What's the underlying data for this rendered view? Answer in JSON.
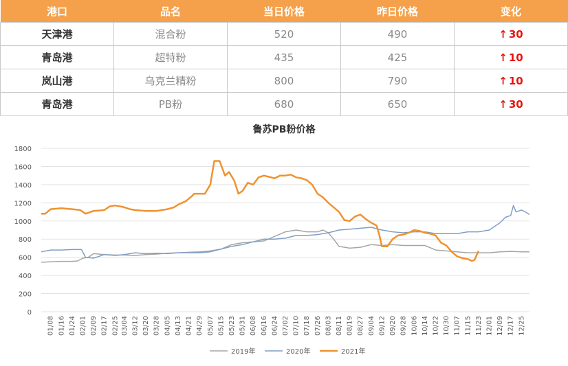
{
  "table": {
    "headers": [
      "港口",
      "品名",
      "当日价格",
      "昨日价格",
      "变化"
    ],
    "rows": [
      {
        "port": "天津港",
        "product": "混合粉",
        "today": "520",
        "yesterday": "490",
        "change_arrow": "↑",
        "change": "30"
      },
      {
        "port": "青岛港",
        "product": "超特粉",
        "today": "435",
        "yesterday": "425",
        "change_arrow": "↑",
        "change": "10"
      },
      {
        "port": "岚山港",
        "product": "乌克兰精粉",
        "today": "800",
        "yesterday": "790",
        "change_arrow": "↑",
        "change": "10"
      },
      {
        "port": "青岛港",
        "product": "PB粉",
        "today": "680",
        "yesterday": "650",
        "change_arrow": "↑",
        "change": "30"
      }
    ],
    "colors": {
      "header_bg": "#f5a04a",
      "increase": "#e8120c"
    }
  },
  "chart_data": {
    "type": "line",
    "title": "鲁苏PB粉价格",
    "ylim": [
      0,
      1800
    ],
    "yticks": [
      0,
      200,
      400,
      600,
      800,
      1000,
      1200,
      1400,
      1600,
      1800
    ],
    "xlim": [
      "01/01",
      "12/31"
    ],
    "xticks": [
      "01/08",
      "01/16",
      "01/24",
      "02/01",
      "02/09",
      "02/17",
      "02/25",
      "03/04",
      "03/12",
      "03/20",
      "03/28",
      "04/05",
      "04/13",
      "04/21",
      "04/29",
      "05/07",
      "05/15",
      "05/23",
      "05/31",
      "06/08",
      "06/16",
      "06/24",
      "07/02",
      "07/10",
      "07/18",
      "07/26",
      "08/03",
      "08/11",
      "08/19",
      "08/27",
      "09/04",
      "09/12",
      "09/20",
      "09/28",
      "10/06",
      "10/14",
      "10/22",
      "10/30",
      "11/07",
      "11/15",
      "11/23",
      "12/01",
      "12/09",
      "12/17",
      "12/25"
    ],
    "legend_position": "bottom",
    "series": [
      {
        "name": "2019年",
        "color": "#a5a5a5",
        "width": 1.5,
        "points": [
          [
            "01/01",
            545
          ],
          [
            "01/08",
            550
          ],
          [
            "01/16",
            555
          ],
          [
            "01/24",
            555
          ],
          [
            "01/28",
            560
          ],
          [
            "02/01",
            590
          ],
          [
            "02/05",
            600
          ],
          [
            "02/09",
            640
          ],
          [
            "02/17",
            630
          ],
          [
            "02/25",
            625
          ],
          [
            "03/04",
            625
          ],
          [
            "03/12",
            620
          ],
          [
            "03/20",
            630
          ],
          [
            "03/28",
            635
          ],
          [
            "04/05",
            645
          ],
          [
            "04/13",
            650
          ],
          [
            "04/21",
            655
          ],
          [
            "04/29",
            660
          ],
          [
            "05/07",
            670
          ],
          [
            "05/15",
            690
          ],
          [
            "05/23",
            740
          ],
          [
            "05/31",
            760
          ],
          [
            "06/08",
            770
          ],
          [
            "06/16",
            780
          ],
          [
            "06/24",
            830
          ],
          [
            "07/02",
            880
          ],
          [
            "07/10",
            900
          ],
          [
            "07/18",
            880
          ],
          [
            "07/26",
            880
          ],
          [
            "07/30",
            900
          ],
          [
            "08/03",
            870
          ],
          [
            "08/07",
            800
          ],
          [
            "08/11",
            720
          ],
          [
            "08/19",
            700
          ],
          [
            "08/27",
            710
          ],
          [
            "09/04",
            740
          ],
          [
            "09/12",
            730
          ],
          [
            "09/20",
            740
          ],
          [
            "09/28",
            730
          ],
          [
            "10/06",
            730
          ],
          [
            "10/14",
            730
          ],
          [
            "10/22",
            680
          ],
          [
            "10/30",
            670
          ],
          [
            "11/07",
            660
          ],
          [
            "11/15",
            650
          ],
          [
            "11/23",
            650
          ],
          [
            "12/01",
            650
          ],
          [
            "12/09",
            660
          ],
          [
            "12/17",
            665
          ],
          [
            "12/25",
            660
          ],
          [
            "12/31",
            660
          ]
        ]
      },
      {
        "name": "2020年",
        "color": "#7f9ec6",
        "width": 1.5,
        "points": [
          [
            "01/01",
            660
          ],
          [
            "01/08",
            680
          ],
          [
            "01/16",
            680
          ],
          [
            "01/24",
            685
          ],
          [
            "01/31",
            685
          ],
          [
            "02/03",
            600
          ],
          [
            "02/09",
            590
          ],
          [
            "02/17",
            630
          ],
          [
            "02/25",
            620
          ],
          [
            "03/04",
            630
          ],
          [
            "03/12",
            650
          ],
          [
            "03/20",
            640
          ],
          [
            "03/28",
            645
          ],
          [
            "04/05",
            640
          ],
          [
            "04/13",
            650
          ],
          [
            "04/21",
            650
          ],
          [
            "04/29",
            650
          ],
          [
            "05/07",
            660
          ],
          [
            "05/15",
            690
          ],
          [
            "05/23",
            720
          ],
          [
            "05/31",
            740
          ],
          [
            "06/08",
            770
          ],
          [
            "06/16",
            800
          ],
          [
            "06/24",
            800
          ],
          [
            "07/02",
            810
          ],
          [
            "07/10",
            840
          ],
          [
            "07/18",
            840
          ],
          [
            "07/26",
            850
          ],
          [
            "08/03",
            870
          ],
          [
            "08/11",
            900
          ],
          [
            "08/19",
            910
          ],
          [
            "08/27",
            920
          ],
          [
            "09/04",
            930
          ],
          [
            "09/12",
            900
          ],
          [
            "09/20",
            880
          ],
          [
            "09/28",
            870
          ],
          [
            "10/06",
            880
          ],
          [
            "10/14",
            880
          ],
          [
            "10/22",
            860
          ],
          [
            "10/30",
            860
          ],
          [
            "11/07",
            860
          ],
          [
            "11/15",
            880
          ],
          [
            "11/23",
            880
          ],
          [
            "12/01",
            900
          ],
          [
            "12/09",
            980
          ],
          [
            "12/13",
            1040
          ],
          [
            "12/17",
            1060
          ],
          [
            "12/19",
            1170
          ],
          [
            "12/21",
            1100
          ],
          [
            "12/25",
            1120
          ],
          [
            "12/28",
            1100
          ],
          [
            "12/31",
            1070
          ]
        ]
      },
      {
        "name": "2021年",
        "color": "#f0922e",
        "width": 2.5,
        "points": [
          [
            "01/01",
            1080
          ],
          [
            "01/04",
            1080
          ],
          [
            "01/08",
            1130
          ],
          [
            "01/16",
            1140
          ],
          [
            "01/24",
            1130
          ],
          [
            "01/30",
            1120
          ],
          [
            "02/03",
            1080
          ],
          [
            "02/09",
            1110
          ],
          [
            "02/17",
            1120
          ],
          [
            "02/21",
            1160
          ],
          [
            "02/25",
            1170
          ],
          [
            "03/01",
            1160
          ],
          [
            "03/04",
            1150
          ],
          [
            "03/08",
            1130
          ],
          [
            "03/12",
            1120
          ],
          [
            "03/20",
            1110
          ],
          [
            "03/28",
            1110
          ],
          [
            "04/05",
            1130
          ],
          [
            "04/10",
            1150
          ],
          [
            "04/13",
            1180
          ],
          [
            "04/19",
            1220
          ],
          [
            "04/23",
            1270
          ],
          [
            "04/25",
            1300
          ],
          [
            "04/29",
            1300
          ],
          [
            "05/03",
            1300
          ],
          [
            "05/07",
            1400
          ],
          [
            "05/10",
            1660
          ],
          [
            "05/14",
            1660
          ],
          [
            "05/18",
            1500
          ],
          [
            "05/21",
            1540
          ],
          [
            "05/25",
            1440
          ],
          [
            "05/28",
            1300
          ],
          [
            "05/31",
            1330
          ],
          [
            "06/04",
            1420
          ],
          [
            "06/08",
            1400
          ],
          [
            "06/12",
            1480
          ],
          [
            "06/16",
            1500
          ],
          [
            "06/24",
            1470
          ],
          [
            "06/28",
            1500
          ],
          [
            "07/02",
            1500
          ],
          [
            "07/06",
            1510
          ],
          [
            "07/10",
            1480
          ],
          [
            "07/14",
            1470
          ],
          [
            "07/18",
            1450
          ],
          [
            "07/22",
            1400
          ],
          [
            "07/26",
            1300
          ],
          [
            "07/30",
            1260
          ],
          [
            "08/03",
            1200
          ],
          [
            "08/07",
            1150
          ],
          [
            "08/11",
            1100
          ],
          [
            "08/15",
            1010
          ],
          [
            "08/19",
            1000
          ],
          [
            "08/23",
            1050
          ],
          [
            "08/27",
            1070
          ],
          [
            "08/31",
            1020
          ],
          [
            "09/04",
            980
          ],
          [
            "09/08",
            950
          ],
          [
            "09/10",
            850
          ],
          [
            "09/12",
            720
          ],
          [
            "09/16",
            720
          ],
          [
            "09/20",
            800
          ],
          [
            "09/24",
            840
          ],
          [
            "09/28",
            850
          ],
          [
            "10/02",
            870
          ],
          [
            "10/06",
            900
          ],
          [
            "10/10",
            890
          ],
          [
            "10/14",
            870
          ],
          [
            "10/18",
            860
          ],
          [
            "10/22",
            840
          ],
          [
            "10/26",
            760
          ],
          [
            "10/30",
            730
          ],
          [
            "11/03",
            660
          ],
          [
            "11/07",
            610
          ],
          [
            "11/11",
            590
          ],
          [
            "11/15",
            580
          ],
          [
            "11/18",
            560
          ],
          [
            "11/20",
            570
          ],
          [
            "11/23",
            670
          ]
        ]
      }
    ]
  }
}
